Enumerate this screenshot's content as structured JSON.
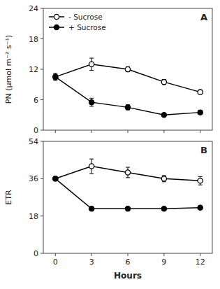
{
  "chart_data": [
    {
      "type": "line",
      "ylabel": "PN (µmol m⁻² s⁻¹)",
      "annotations": [
        "A"
      ],
      "x": [
        0,
        3,
        6,
        9,
        12
      ],
      "xlim": [
        -1,
        13
      ],
      "xticks": [
        0,
        3,
        6,
        9,
        12
      ],
      "ylim": [
        0,
        24
      ],
      "yticks": [
        0,
        6,
        12,
        18,
        24
      ],
      "tick_labels": "y",
      "grid": false,
      "legend": "upper left",
      "series": [
        {
          "name": "- Sucrose",
          "color": "#000000",
          "marker": "open-circle",
          "line_style": "solid",
          "values": [
            10.5,
            13.0,
            12.0,
            9.5,
            7.5
          ],
          "errors": [
            0.5,
            1.2,
            0.5,
            0.5,
            0.4
          ]
        },
        {
          "name": "+ Sucrose",
          "color": "#000000",
          "marker": "circle",
          "line_style": "solid",
          "values": [
            10.5,
            5.5,
            4.5,
            3.0,
            3.5
          ],
          "errors": [
            0.7,
            0.8,
            0.5,
            0.3,
            0.4
          ]
        }
      ]
    },
    {
      "type": "line",
      "xlabel": "Hours",
      "ylabel": "ETR",
      "annotations": [
        "B"
      ],
      "x": [
        0,
        3,
        6,
        9,
        12
      ],
      "xlim": [
        -1,
        13
      ],
      "xticks": [
        0,
        3,
        6,
        9,
        12
      ],
      "ylim": [
        0,
        54
      ],
      "yticks": [
        0,
        18,
        36,
        54
      ],
      "grid": false,
      "series": [
        {
          "color": "#000000",
          "marker": "open-circle",
          "line_style": "solid",
          "values": [
            36.0,
            42.0,
            39.0,
            36.0,
            35.0
          ],
          "errors": [
            0.8,
            3.5,
            2.5,
            1.5,
            2.0
          ]
        },
        {
          "color": "#000000",
          "marker": "circle",
          "line_style": "solid",
          "values": [
            36.0,
            21.5,
            21.5,
            21.5,
            22.0
          ],
          "errors": [
            0.5,
            1.0,
            1.0,
            0.8,
            0.8
          ]
        }
      ]
    }
  ]
}
